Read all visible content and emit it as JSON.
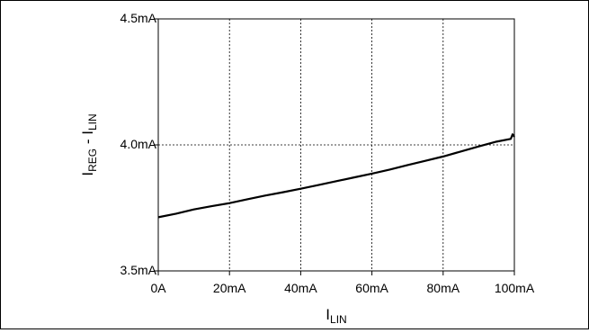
{
  "chart_data": {
    "type": "line",
    "xlabel": "I",
    "xlabel_sub": "LIN",
    "ylabel_parts": [
      {
        "text": "I",
        "sub": false
      },
      {
        "text": "REG",
        "sub": true
      },
      {
        "text": " - I",
        "sub": false
      },
      {
        "text": "LIN",
        "sub": true
      }
    ],
    "x_ticks": [
      {
        "value": 0,
        "label": "0A"
      },
      {
        "value": 20,
        "label": "20mA"
      },
      {
        "value": 40,
        "label": "40mA"
      },
      {
        "value": 60,
        "label": "60mA"
      },
      {
        "value": 80,
        "label": "80mA"
      },
      {
        "value": 100,
        "label": "100mA"
      }
    ],
    "y_ticks": [
      {
        "value": 3.5,
        "label": "3.5mA"
      },
      {
        "value": 4.0,
        "label": "4.0mA"
      },
      {
        "value": 4.5,
        "label": "4.5mA"
      }
    ],
    "xlim": [
      0,
      100
    ],
    "ylim": [
      3.5,
      4.5
    ],
    "grid": true,
    "series": [
      {
        "x": [
          0,
          5,
          10,
          15,
          20,
          25,
          30,
          35,
          40,
          45,
          50,
          55,
          60,
          65,
          70,
          75,
          80,
          85,
          90,
          95,
          99,
          99.5,
          100
        ],
        "y": [
          3.713,
          3.727,
          3.744,
          3.757,
          3.769,
          3.784,
          3.799,
          3.812,
          3.826,
          3.841,
          3.856,
          3.871,
          3.886,
          3.902,
          3.92,
          3.937,
          3.954,
          3.974,
          3.994,
          4.013,
          4.024,
          4.042,
          4.032
        ]
      }
    ]
  }
}
